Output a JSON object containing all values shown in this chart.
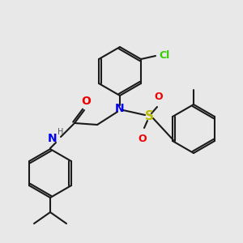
{
  "background_color": "#e8e8e8",
  "bond_color": "#1a1a1a",
  "atom_colors": {
    "N": "#0000ee",
    "O": "#ee0000",
    "S": "#bbbb00",
    "Cl": "#33cc00",
    "H": "#555555"
  },
  "figsize": [
    3.0,
    3.0
  ],
  "dpi": 100
}
